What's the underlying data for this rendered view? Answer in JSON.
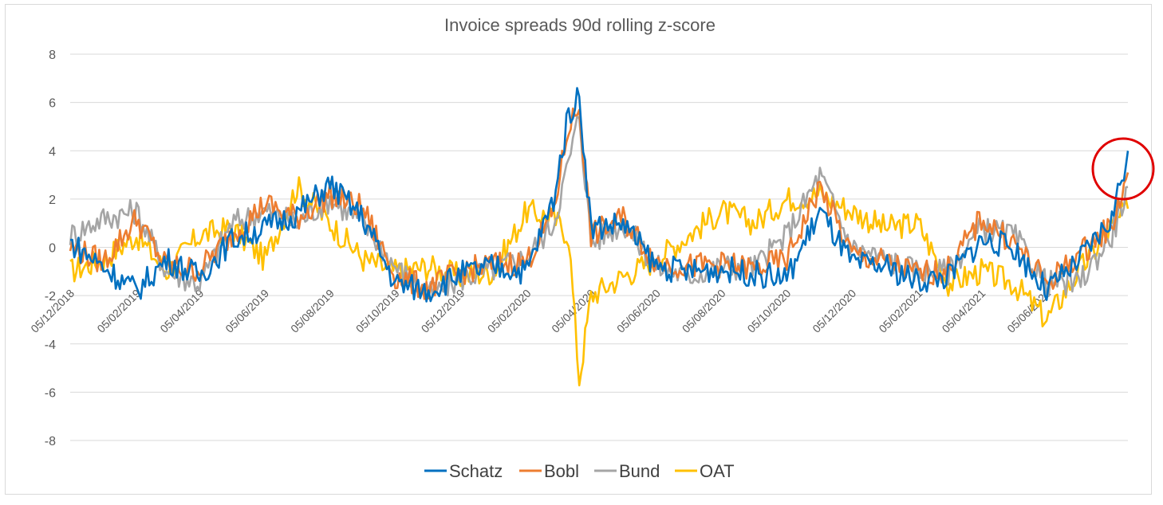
{
  "chart_data": {
    "type": "line",
    "title": "Invoice spreads 90d rolling z-score",
    "xlabel": "",
    "ylabel": "",
    "ylim": [
      -8,
      8
    ],
    "yticks": [
      8,
      6,
      4,
      2,
      0,
      -2,
      -4,
      -6,
      -8
    ],
    "x_tick_labels": [
      "05/12/2018",
      "05/02/2019",
      "05/04/2019",
      "05/06/2019",
      "05/08/2019",
      "05/10/2019",
      "05/12/2019",
      "05/02/2020",
      "05/04/2020",
      "05/06/2020",
      "05/08/2020",
      "05/10/2020",
      "05/12/2020",
      "05/02/2021",
      "05/04/2021",
      "05/06/2021"
    ],
    "grid": "horizontal",
    "legend_position": "bottom",
    "annotation": "red-circle-highlight-latest-values",
    "series": [
      {
        "name": "Schatz",
        "color": "#0070c0",
        "x": [
          "2018-12-05",
          "2019-01-05",
          "2019-02-05",
          "2019-03-05",
          "2019-04-05",
          "2019-05-05",
          "2019-06-05",
          "2019-07-05",
          "2019-08-05",
          "2019-09-05",
          "2019-10-05",
          "2019-11-05",
          "2019-12-05",
          "2020-01-05",
          "2020-02-05",
          "2020-03-01",
          "2020-03-15",
          "2020-03-25",
          "2020-04-05",
          "2020-05-05",
          "2020-06-05",
          "2020-07-05",
          "2020-08-05",
          "2020-09-05",
          "2020-10-05",
          "2020-11-05",
          "2020-12-05",
          "2021-01-05",
          "2021-02-05",
          "2021-03-05",
          "2021-04-05",
          "2021-05-05",
          "2021-06-05",
          "2021-07-05",
          "2021-08-05",
          "2021-08-20"
        ],
        "values": [
          0.2,
          -0.8,
          -1.8,
          -0.5,
          -1.2,
          0.3,
          0.8,
          1.4,
          2.6,
          1.2,
          -1.5,
          -1.8,
          -1.1,
          -0.8,
          -1.0,
          2.0,
          5.5,
          6.3,
          0.8,
          1.0,
          -0.8,
          -1.0,
          -0.9,
          -1.1,
          -1.3,
          1.5,
          -0.7,
          -0.8,
          -1.4,
          -1.2,
          0.3,
          0.0,
          -1.8,
          -0.6,
          1.2,
          4.0
        ]
      },
      {
        "name": "Bobl",
        "color": "#ed7d31",
        "x": [
          "2018-12-05",
          "2019-01-05",
          "2019-02-05",
          "2019-03-05",
          "2019-04-05",
          "2019-05-05",
          "2019-06-05",
          "2019-07-05",
          "2019-08-05",
          "2019-09-05",
          "2019-10-05",
          "2019-11-05",
          "2019-12-05",
          "2020-01-05",
          "2020-02-05",
          "2020-03-01",
          "2020-03-15",
          "2020-03-25",
          "2020-04-05",
          "2020-05-05",
          "2020-06-05",
          "2020-07-05",
          "2020-08-05",
          "2020-09-05",
          "2020-10-05",
          "2020-11-05",
          "2020-12-05",
          "2021-01-05",
          "2021-02-05",
          "2021-03-05",
          "2021-04-05",
          "2021-05-05",
          "2021-06-05",
          "2021-07-05",
          "2021-08-05",
          "2021-08-20"
        ],
        "values": [
          0.0,
          -0.6,
          1.2,
          -0.8,
          -0.9,
          0.5,
          1.8,
          1.2,
          2.2,
          1.6,
          -1.2,
          -1.7,
          -1.0,
          -0.7,
          -0.6,
          1.5,
          5.0,
          5.8,
          0.5,
          1.2,
          -0.6,
          -0.8,
          -0.7,
          -0.9,
          -0.5,
          2.5,
          -0.3,
          -0.6,
          -1.1,
          -0.9,
          1.2,
          0.2,
          -1.5,
          -0.3,
          0.9,
          3.1
        ]
      },
      {
        "name": "Bund",
        "color": "#a5a5a5",
        "x": [
          "2018-12-05",
          "2019-01-05",
          "2019-02-05",
          "2019-03-05",
          "2019-04-05",
          "2019-05-05",
          "2019-06-05",
          "2019-07-05",
          "2019-08-05",
          "2019-09-05",
          "2019-10-05",
          "2019-11-05",
          "2019-12-05",
          "2020-01-05",
          "2020-02-05",
          "2020-03-01",
          "2020-03-15",
          "2020-03-25",
          "2020-04-05",
          "2020-05-05",
          "2020-06-05",
          "2020-07-05",
          "2020-08-05",
          "2020-09-05",
          "2020-10-05",
          "2020-11-05",
          "2020-12-05",
          "2021-01-05",
          "2021-02-05",
          "2021-03-05",
          "2021-04-05",
          "2021-05-05",
          "2021-06-05",
          "2021-07-05",
          "2021-08-05",
          "2021-08-20"
        ],
        "values": [
          0.5,
          1.2,
          1.5,
          -1.0,
          -1.5,
          1.0,
          1.5,
          1.0,
          2.0,
          1.0,
          -0.8,
          -2.0,
          -1.3,
          -0.9,
          -0.4,
          1.0,
          3.5,
          5.5,
          0.2,
          1.0,
          -0.8,
          -1.2,
          -0.8,
          -0.8,
          0.5,
          3.0,
          0.0,
          -0.5,
          -1.0,
          -1.0,
          0.8,
          0.5,
          -1.5,
          -1.5,
          0.5,
          2.5
        ]
      },
      {
        "name": "OAT",
        "color": "#ffc000",
        "x": [
          "2018-12-05",
          "2019-01-05",
          "2019-02-05",
          "2019-03-05",
          "2019-04-05",
          "2019-05-05",
          "2019-06-05",
          "2019-07-05",
          "2019-08-05",
          "2019-09-05",
          "2019-10-05",
          "2019-11-05",
          "2019-12-05",
          "2020-01-05",
          "2020-02-05",
          "2020-03-01",
          "2020-03-15",
          "2020-03-25",
          "2020-04-05",
          "2020-05-05",
          "2020-06-05",
          "2020-07-05",
          "2020-08-05",
          "2020-09-05",
          "2020-10-05",
          "2020-11-05",
          "2020-12-05",
          "2021-01-05",
          "2021-02-05",
          "2021-03-05",
          "2021-04-05",
          "2021-05-05",
          "2021-06-05",
          "2021-07-05",
          "2021-08-05",
          "2021-08-20"
        ],
        "values": [
          -1.0,
          -0.5,
          0.5,
          -1.0,
          0.5,
          0.8,
          -0.5,
          2.5,
          1.0,
          -0.5,
          -1.0,
          -0.8,
          -1.2,
          -1.0,
          1.5,
          1.2,
          0.5,
          -5.5,
          -2.0,
          -1.2,
          -0.5,
          0.5,
          1.5,
          1.0,
          2.0,
          2.2,
          1.5,
          0.8,
          1.0,
          -1.5,
          -1.0,
          -1.5,
          -3.0,
          -1.0,
          0.8,
          1.6
        ]
      }
    ]
  }
}
